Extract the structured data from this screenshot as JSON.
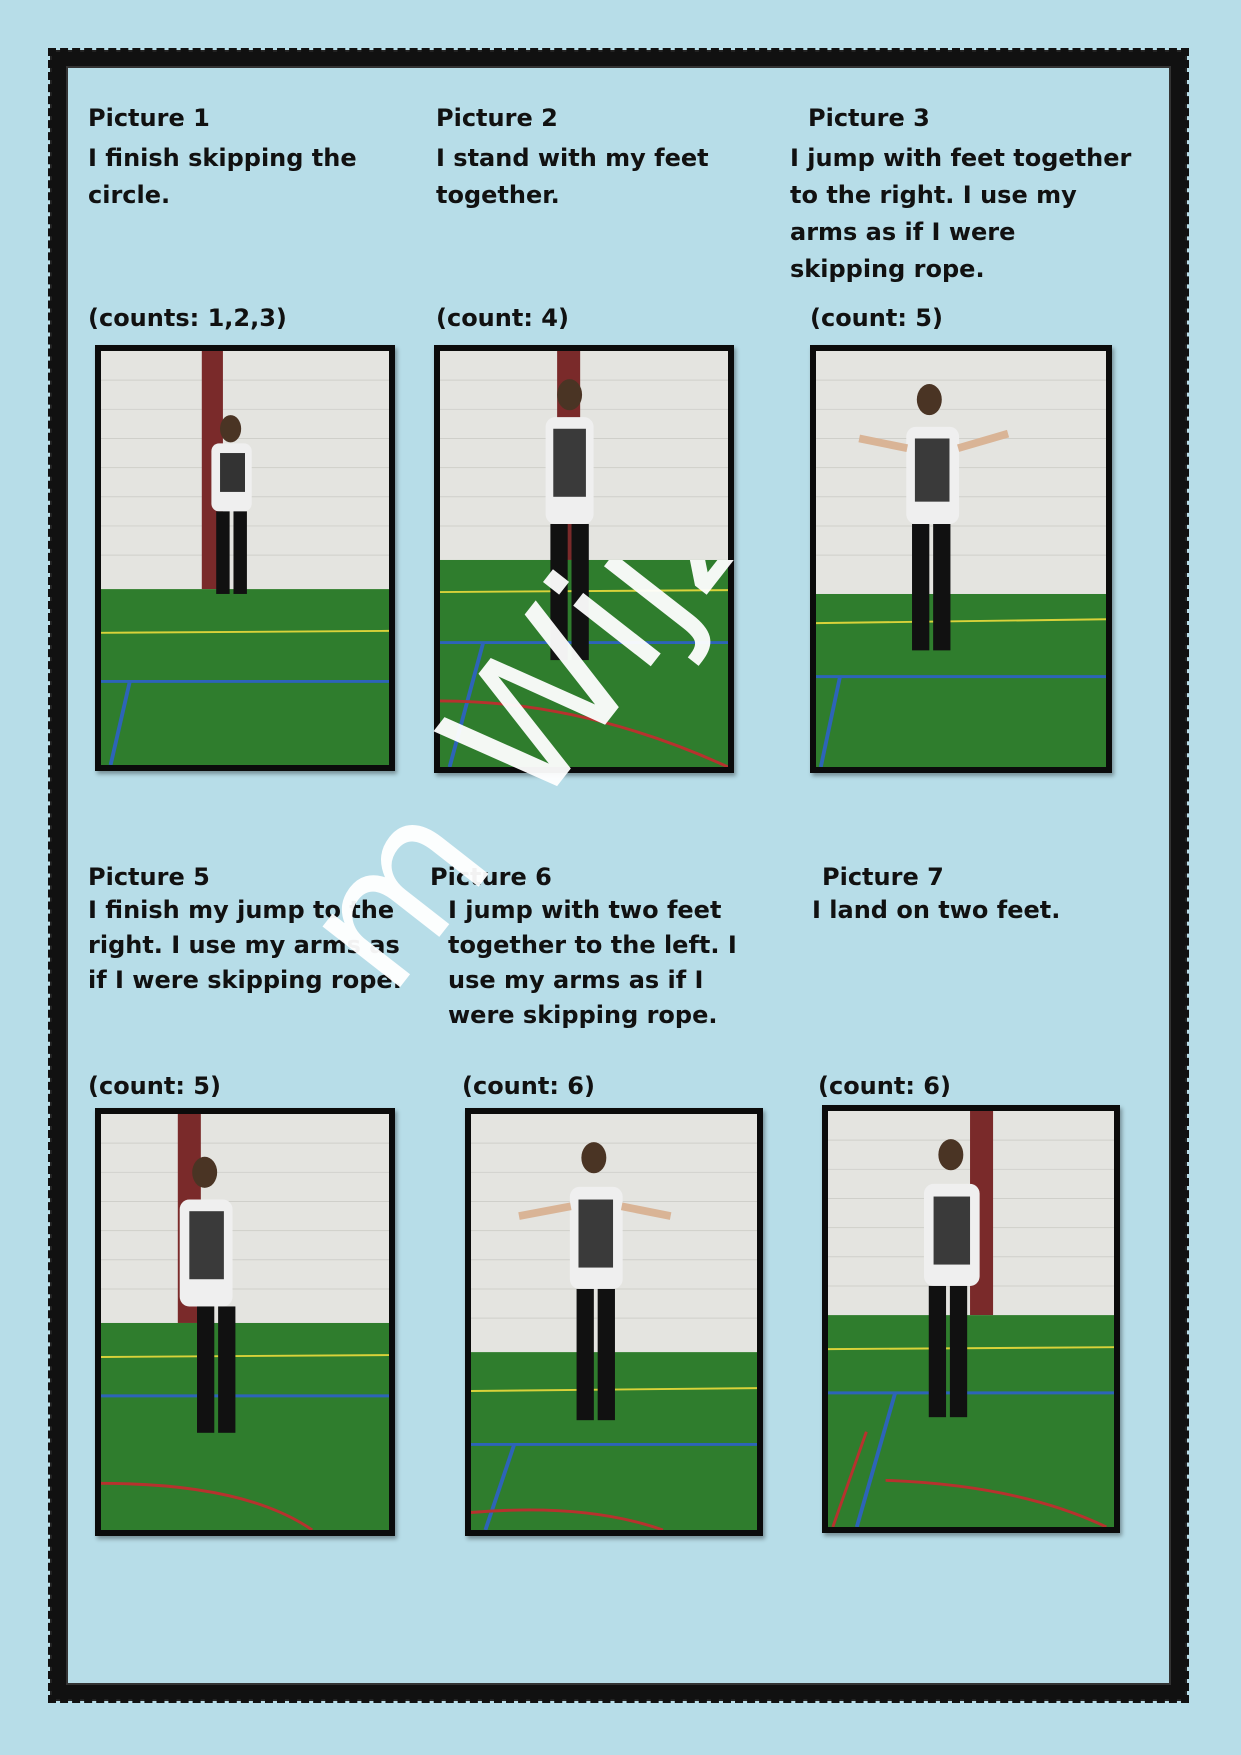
{
  "pictures": [
    {
      "title": "Picture 1",
      "desc": "I finish skipping the circle.",
      "count": "(counts: 1,2,3)"
    },
    {
      "title": "Picture 2",
      "desc": "I stand with my feet together.",
      "count": "(count: 4)"
    },
    {
      "title": "Picture 3",
      "desc": "I jump with feet together to the right. I use my arms as if I were skipping rope.",
      "count": "(count: 5)"
    },
    {
      "title": "Picture 5",
      "desc": "I finish my jump to the right. I use my arms as if I were skipping rope.",
      "count": "(count: 5)"
    },
    {
      "title": "Picture 6",
      "desc": "I jump with two feet together to the left. I use my arms as if I were skipping rope.",
      "count": "(count: 6)"
    },
    {
      "title": "Picture 7",
      "desc": "I land on two feet.",
      "count": "(count: 6)"
    }
  ],
  "watermark": "m Wijze",
  "colors": {
    "background": "#b7dde8",
    "floor": "#2e7d2c",
    "wall": "#e6e6e3",
    "border": "#111111"
  }
}
